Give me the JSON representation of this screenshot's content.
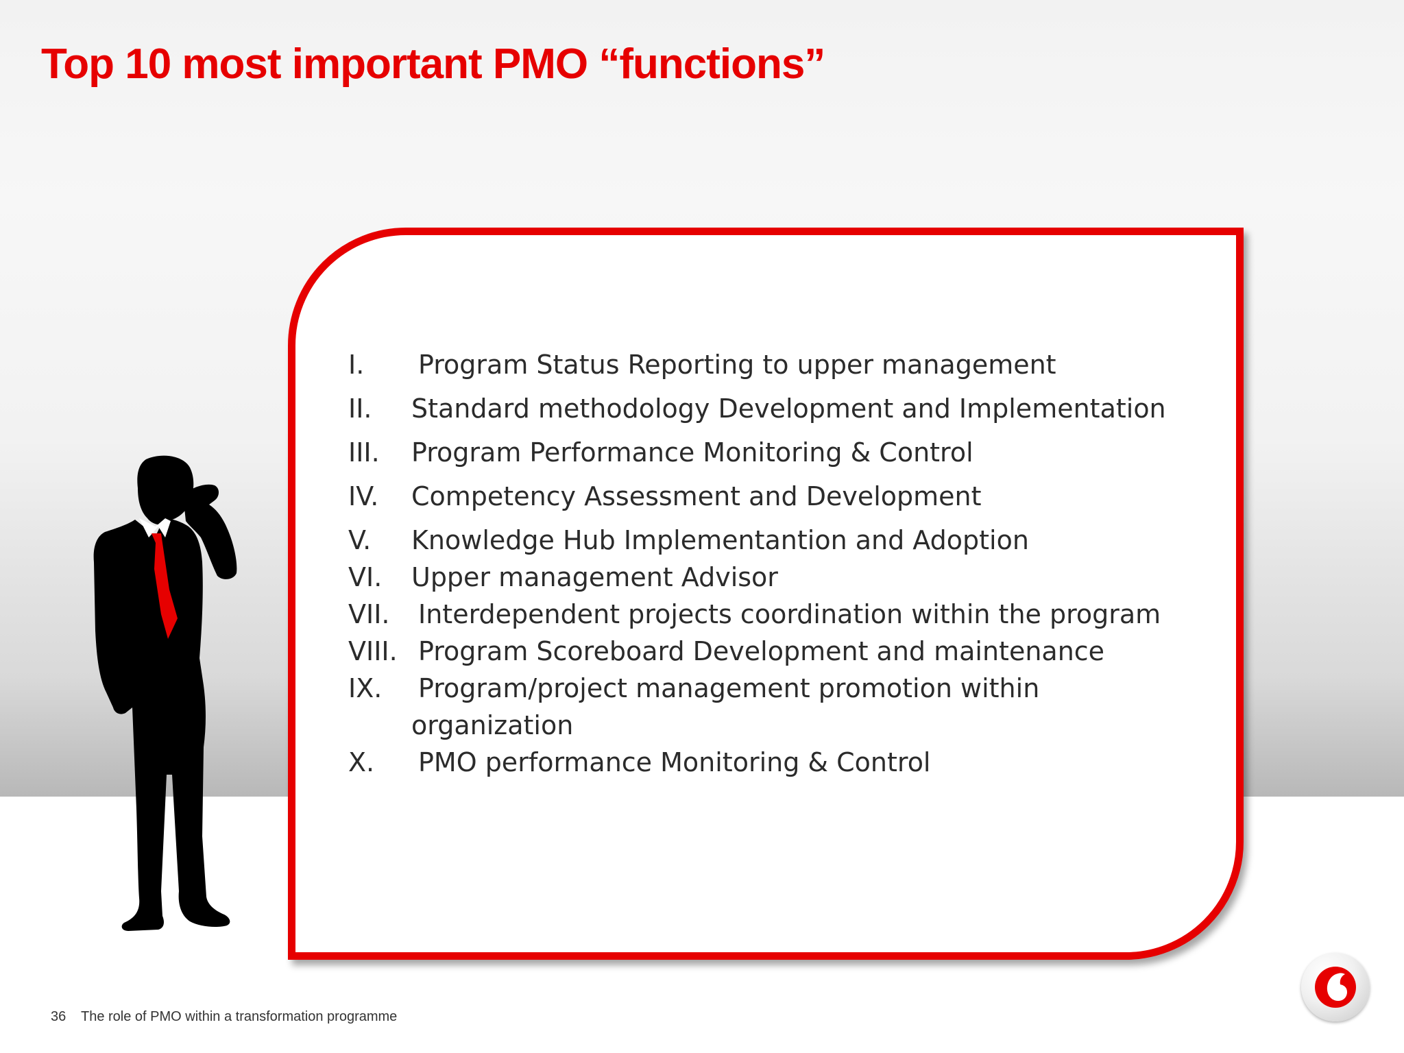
{
  "slide": {
    "title": "Top 10 most important PMO “functions”",
    "items": [
      {
        "num": "I.",
        "text": "Program Status Reporting to upper management"
      },
      {
        "num": "II.",
        "text": "Standard methodology Development and Implementation"
      },
      {
        "num": "III.",
        "text": "Program Performance Monitoring & Control"
      },
      {
        "num": "IV.",
        "text": "Competency Assessment and Development"
      },
      {
        "num": "V.",
        "text": "Knowledge Hub Implementantion and Adoption"
      },
      {
        "num": "VI.",
        "text": "Upper management Advisor"
      },
      {
        "num": "VII.",
        "text": "Interdependent projects coordination within the program"
      },
      {
        "num": "VIII.",
        "text": "Program Scoreboard Development and maintenance"
      },
      {
        "num": "IX.",
        "text": "Program/project management promotion within",
        "continuation": "organization"
      },
      {
        "num": "X.",
        "text": "PMO performance Monitoring & Control"
      }
    ]
  },
  "footer": {
    "page_number": "36",
    "text": "The role of PMO within a transformation programme"
  },
  "colors": {
    "accent": "#e60000",
    "text": "#2b2b2b"
  },
  "icons": {
    "figure": "businessman-silhouette-icon",
    "logo": "vodafone-logo-icon"
  }
}
